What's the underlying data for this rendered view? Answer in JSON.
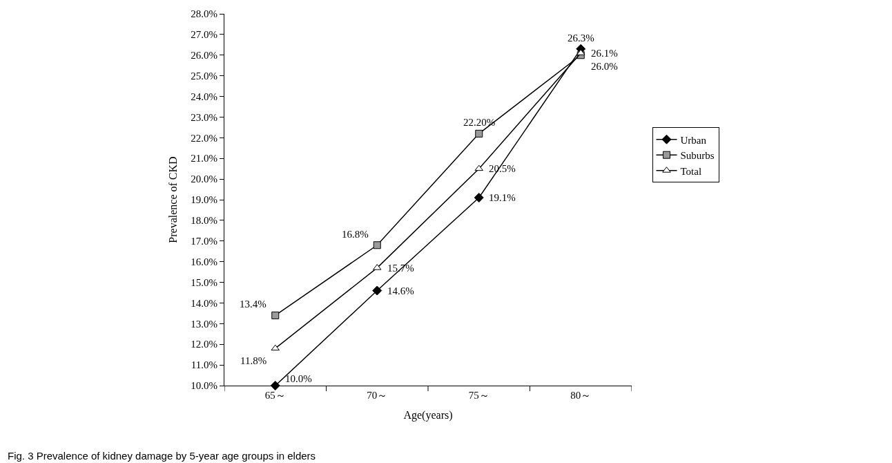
{
  "chart_data": {
    "type": "line",
    "xlabel": "Age(years)",
    "ylabel": "Prevalence of CKD",
    "categories": [
      "65～",
      "70～",
      "75～",
      "80～"
    ],
    "series": [
      {
        "name": "Urban",
        "color": "#000000",
        "marker": "diamond",
        "values": [
          10.0,
          14.6,
          19.1,
          26.3
        ],
        "value_labels": [
          "10.0%",
          "14.6%",
          "19.1%",
          "26.3%"
        ]
      },
      {
        "name": "Suburbs",
        "color": "#000000",
        "marker": "square",
        "values": [
          13.4,
          16.8,
          22.2,
          26.0
        ],
        "value_labels": [
          "13.4%",
          "16.8%",
          "22.20%",
          "26.0%"
        ]
      },
      {
        "name": "Total",
        "color": "#000000",
        "marker": "triangle",
        "values": [
          11.8,
          15.7,
          20.5,
          26.1
        ],
        "value_labels": [
          "11.8%",
          "15.7%",
          "20.5%",
          "26.1%"
        ]
      }
    ],
    "ylim": [
      10,
      28
    ],
    "yticks": [
      {
        "value": 10,
        "label": "10.0%"
      },
      {
        "value": 11,
        "label": "11.0%"
      },
      {
        "value": 12,
        "label": "12.0%"
      },
      {
        "value": 13,
        "label": "13.0%"
      },
      {
        "value": 14,
        "label": "14.0%"
      },
      {
        "value": 15,
        "label": "15.0%"
      },
      {
        "value": 16,
        "label": "16.0%"
      },
      {
        "value": 17,
        "label": "17.0%"
      },
      {
        "value": 18,
        "label": "18.0%"
      },
      {
        "value": 19,
        "label": "19.0%"
      },
      {
        "value": 20,
        "label": "20.0%"
      },
      {
        "value": 21,
        "label": "21.0%"
      },
      {
        "value": 22,
        "label": "22.0%"
      },
      {
        "value": 23,
        "label": "23.0%"
      },
      {
        "value": 24,
        "label": "24.0%"
      },
      {
        "value": 25,
        "label": "25.0%"
      },
      {
        "value": 26,
        "label": "26.0%"
      },
      {
        "value": 27,
        "label": "27.0%"
      },
      {
        "value": 28,
        "label": "28.0%"
      }
    ],
    "legend": "right",
    "line_style": "solid",
    "annotations": [
      "Fig. 3 Prevalence of kidney damage by 5-year age groups in elders"
    ]
  }
}
